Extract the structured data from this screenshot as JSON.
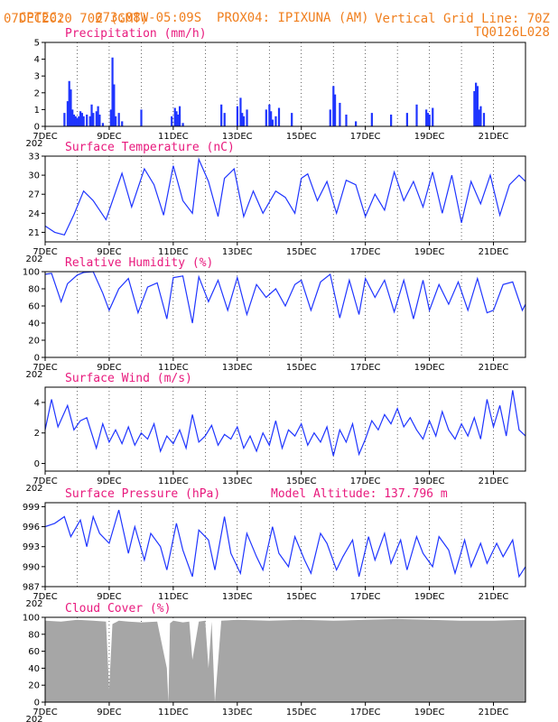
{
  "header": {
    "line1_left": "CPTEC:",
    "coords": "073:08W-05:09S",
    "station": "PROX04: IPIXUNA (AM)",
    "line2_left": "07DEC2020 70Z (GMT)",
    "grid_note": "Vertical Grid Line: 70Z",
    "code": "TQ0126L028"
  },
  "colors": {
    "header": "#f07f1e",
    "title": "#e8197d",
    "series": "#1f35ff",
    "cloud": "#a6a6a6"
  },
  "x_axis": {
    "start_day": 7,
    "end_day": 22,
    "tick_labels": [
      "7DEC",
      "9DEC",
      "11DEC",
      "13DEC",
      "15DEC",
      "17DEC",
      "19DEC",
      "21DEC"
    ],
    "tick_days": [
      7,
      9,
      11,
      13,
      15,
      17,
      19,
      21
    ],
    "year_label": "202"
  },
  "chart_data": [
    {
      "type": "bar",
      "title": "Precipitation (mm/h)",
      "ylim": [
        0,
        5
      ],
      "yticks": [
        0,
        1,
        2,
        3,
        4,
        5
      ],
      "x": [
        7.6,
        7.7,
        7.75,
        7.8,
        7.85,
        7.9,
        7.95,
        8.0,
        8.05,
        8.1,
        8.15,
        8.2,
        8.3,
        8.4,
        8.45,
        8.5,
        8.6,
        8.65,
        8.7,
        8.8,
        9.05,
        9.1,
        9.15,
        9.2,
        9.3,
        9.4,
        10.0,
        10.95,
        11.05,
        11.1,
        11.15,
        11.2,
        11.3,
        12.5,
        12.6,
        13.0,
        13.1,
        13.15,
        13.2,
        13.3,
        13.9,
        14.0,
        14.05,
        14.1,
        14.2,
        14.3,
        14.7,
        15.9,
        16.0,
        16.05,
        16.2,
        16.4,
        16.7,
        17.2,
        17.8,
        18.3,
        18.6,
        18.9,
        18.95,
        19.0,
        19.1,
        20.4,
        20.45,
        20.5,
        20.55,
        20.6,
        20.7
      ],
      "values": [
        0.8,
        1.5,
        2.7,
        2.2,
        1.0,
        0.7,
        0.6,
        0.5,
        0.6,
        0.9,
        0.8,
        0.6,
        0.7,
        0.6,
        1.3,
        0.8,
        0.9,
        1.2,
        0.7,
        0.2,
        1.0,
        4.1,
        2.5,
        0.6,
        0.8,
        0.3,
        1.0,
        0.6,
        1.1,
        0.9,
        0.7,
        1.2,
        0.2,
        1.3,
        0.8,
        1.2,
        1.7,
        0.8,
        0.6,
        1.0,
        1.0,
        1.3,
        0.9,
        0.4,
        0.6,
        1.1,
        0.8,
        1.0,
        2.4,
        1.9,
        1.4,
        0.7,
        0.3,
        0.8,
        0.7,
        0.8,
        1.3,
        1.0,
        0.8,
        0.7,
        1.1,
        2.1,
        2.6,
        2.4,
        1.0,
        1.2,
        0.8
      ]
    },
    {
      "type": "line",
      "title": "Surface Temperature (nC)",
      "ylim": [
        19.5,
        33
      ],
      "yticks": [
        21,
        24,
        27,
        30,
        33
      ],
      "x": [
        7.0,
        7.3,
        7.6,
        7.9,
        8.2,
        8.5,
        8.9,
        9.4,
        9.7,
        10.1,
        10.4,
        10.7,
        11.0,
        11.3,
        11.6,
        11.8,
        12.1,
        12.4,
        12.6,
        12.9,
        13.2,
        13.5,
        13.8,
        14.2,
        14.5,
        14.8,
        15.0,
        15.2,
        15.5,
        15.8,
        16.1,
        16.4,
        16.7,
        17.0,
        17.3,
        17.6,
        17.9,
        18.2,
        18.5,
        18.8,
        19.1,
        19.4,
        19.7,
        20.0,
        20.3,
        20.6,
        20.9,
        21.2,
        21.5,
        21.8,
        22.0
      ],
      "values": [
        22.0,
        21.0,
        20.6,
        23.8,
        27.5,
        26.0,
        23.0,
        30.3,
        25.0,
        31.0,
        28.5,
        23.7,
        31.5,
        26.0,
        24.0,
        32.5,
        29.0,
        23.5,
        29.5,
        31.0,
        23.5,
        27.5,
        24.0,
        27.5,
        26.5,
        24.0,
        29.5,
        30.2,
        26.0,
        29.0,
        24.0,
        29.2,
        28.5,
        23.5,
        27.0,
        24.5,
        30.5,
        26.0,
        29.0,
        25.0,
        30.5,
        24.0,
        30.0,
        22.5,
        29.0,
        25.5,
        30.0,
        23.7,
        28.5,
        30.0,
        29.0
      ]
    },
    {
      "type": "line",
      "title": "Relative Humidity (%)",
      "ylim": [
        0,
        100
      ],
      "yticks": [
        0,
        20,
        40,
        60,
        80,
        100
      ],
      "x": [
        7.0,
        7.2,
        7.5,
        7.7,
        8.0,
        8.2,
        8.5,
        8.8,
        9.0,
        9.3,
        9.6,
        9.9,
        10.2,
        10.5,
        10.8,
        11.0,
        11.3,
        11.6,
        11.8,
        12.1,
        12.4,
        12.7,
        13.0,
        13.3,
        13.6,
        13.9,
        14.2,
        14.5,
        14.8,
        15.0,
        15.3,
        15.6,
        15.9,
        16.2,
        16.5,
        16.8,
        17.0,
        17.3,
        17.6,
        17.9,
        18.2,
        18.5,
        18.8,
        19.0,
        19.3,
        19.6,
        19.9,
        20.2,
        20.5,
        20.8,
        21.0,
        21.3,
        21.6,
        21.9,
        22.0
      ],
      "values": [
        97,
        98,
        65,
        86,
        96,
        99,
        100,
        75,
        55,
        80,
        92,
        52,
        82,
        87,
        45,
        93,
        95,
        40,
        94,
        65,
        90,
        55,
        93,
        50,
        85,
        70,
        80,
        60,
        85,
        90,
        55,
        88,
        97,
        46,
        90,
        50,
        92,
        70,
        90,
        53,
        90,
        45,
        90,
        55,
        85,
        62,
        88,
        55,
        92,
        52,
        55,
        85,
        88,
        55,
        62
      ]
    },
    {
      "type": "line",
      "title": "Surface Wind (m/s)",
      "ylim": [
        -0.5,
        5
      ],
      "yticks": [
        0,
        2,
        4
      ],
      "x": [
        7.0,
        7.2,
        7.4,
        7.7,
        7.9,
        8.1,
        8.3,
        8.6,
        8.8,
        9.0,
        9.2,
        9.4,
        9.6,
        9.8,
        10.0,
        10.2,
        10.4,
        10.6,
        10.8,
        11.0,
        11.2,
        11.4,
        11.6,
        11.8,
        12.0,
        12.2,
        12.4,
        12.6,
        12.8,
        13.0,
        13.2,
        13.4,
        13.6,
        13.8,
        14.0,
        14.2,
        14.4,
        14.6,
        14.8,
        15.0,
        15.2,
        15.4,
        15.6,
        15.8,
        16.0,
        16.2,
        16.4,
        16.6,
        16.8,
        17.0,
        17.2,
        17.4,
        17.6,
        17.8,
        18.0,
        18.2,
        18.4,
        18.6,
        18.8,
        19.0,
        19.2,
        19.4,
        19.6,
        19.8,
        20.0,
        20.2,
        20.4,
        20.6,
        20.8,
        21.0,
        21.2,
        21.4,
        21.6,
        21.8,
        22.0
      ],
      "values": [
        2.2,
        4.2,
        2.4,
        3.8,
        2.2,
        2.8,
        3.0,
        1.0,
        2.6,
        1.4,
        2.2,
        1.3,
        2.4,
        1.2,
        2.0,
        1.6,
        2.6,
        0.8,
        1.8,
        1.3,
        2.2,
        1.0,
        3.2,
        1.4,
        1.8,
        2.5,
        1.2,
        1.9,
        1.6,
        2.4,
        1.0,
        1.8,
        0.8,
        2.0,
        1.2,
        2.8,
        1.0,
        2.2,
        1.8,
        2.6,
        1.2,
        2.0,
        1.4,
        2.4,
        0.5,
        2.2,
        1.4,
        2.6,
        0.6,
        1.6,
        2.8,
        2.2,
        3.2,
        2.6,
        3.6,
        2.4,
        3.0,
        2.2,
        1.6,
        2.8,
        1.8,
        3.4,
        2.2,
        1.6,
        2.6,
        1.8,
        3.0,
        1.6,
        4.2,
        2.4,
        3.8,
        1.8,
        4.8,
        2.2,
        1.8
      ]
    },
    {
      "type": "line",
      "title": "Surface Pressure (hPa)",
      "annotation": "Model Altitude: 137.796 m",
      "ylim": [
        987,
        999.6
      ],
      "yticks": [
        987,
        990,
        993,
        996,
        999
      ],
      "x": [
        7.0,
        7.3,
        7.6,
        7.8,
        8.1,
        8.3,
        8.5,
        8.7,
        9.0,
        9.3,
        9.6,
        9.8,
        10.1,
        10.3,
        10.6,
        10.8,
        11.1,
        11.3,
        11.6,
        11.8,
        12.1,
        12.3,
        12.6,
        12.8,
        13.1,
        13.3,
        13.6,
        13.8,
        14.1,
        14.3,
        14.6,
        14.8,
        15.1,
        15.3,
        15.6,
        15.8,
        16.1,
        16.3,
        16.6,
        16.8,
        17.1,
        17.3,
        17.6,
        17.8,
        18.1,
        18.3,
        18.6,
        18.8,
        19.1,
        19.3,
        19.6,
        19.8,
        20.1,
        20.3,
        20.6,
        20.8,
        21.1,
        21.3,
        21.6,
        21.8,
        22.0
      ],
      "values": [
        996.0,
        996.5,
        997.5,
        994.5,
        997.0,
        993.0,
        997.5,
        995.0,
        993.5,
        998.5,
        992.0,
        996.0,
        991.0,
        995.0,
        993.0,
        989.5,
        996.5,
        992.5,
        988.5,
        995.5,
        994.0,
        989.5,
        997.5,
        992.0,
        989.0,
        995.0,
        991.5,
        989.5,
        996.0,
        992.0,
        990.0,
        994.5,
        991.0,
        989.0,
        995.0,
        993.5,
        989.5,
        991.5,
        994.0,
        988.5,
        994.5,
        991.0,
        995.0,
        990.5,
        994.0,
        989.5,
        994.5,
        992.0,
        990.0,
        994.5,
        992.5,
        989.0,
        994.0,
        990.0,
        993.5,
        990.5,
        993.5,
        991.5,
        994.0,
        988.5,
        990.0
      ]
    },
    {
      "type": "area",
      "title": "Cloud Cover (%)",
      "ylim": [
        0,
        100
      ],
      "yticks": [
        0,
        20,
        40,
        60,
        80,
        100
      ],
      "x": [
        7.0,
        7.5,
        8.0,
        8.5,
        8.9,
        9.0,
        9.1,
        9.3,
        9.6,
        10.0,
        10.5,
        10.8,
        10.85,
        10.9,
        11.0,
        11.3,
        11.5,
        11.6,
        11.8,
        12.0,
        12.1,
        12.2,
        12.3,
        12.5,
        13.0,
        14.0,
        15.0,
        16.0,
        17.0,
        18.0,
        19.0,
        20.0,
        21.0,
        22.0
      ],
      "values": [
        96,
        95,
        97,
        96,
        95,
        15,
        92,
        96,
        95,
        94,
        95,
        40,
        0,
        93,
        96,
        94,
        95,
        50,
        95,
        96,
        40,
        95,
        0,
        96,
        97,
        96,
        97,
        96,
        97,
        98,
        97,
        96,
        96,
        97
      ]
    }
  ]
}
